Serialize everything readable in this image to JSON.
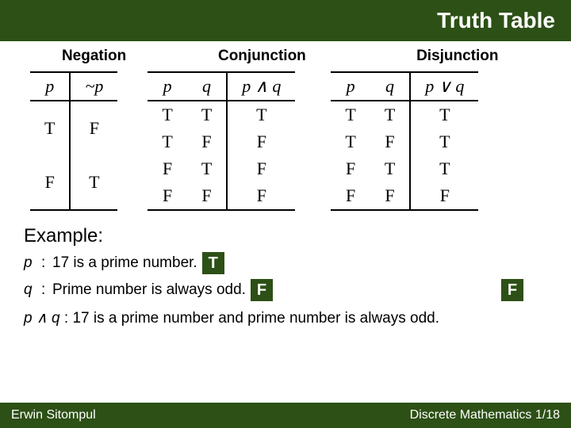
{
  "colors": {
    "brand": "#2d5016",
    "brand_text": "#ffffff",
    "page_bg": "#ffffff",
    "rule": "#000000"
  },
  "header": {
    "title": "Truth Table"
  },
  "sections": {
    "negation": {
      "label": "Negation",
      "columns": [
        "p",
        "~p"
      ],
      "rows": [
        [
          "T",
          "F"
        ],
        [
          "F",
          "T"
        ]
      ]
    },
    "conjunction": {
      "label": "Conjunction",
      "columns": [
        "p",
        "q",
        "p ∧ q"
      ],
      "rows": [
        [
          "T",
          "T",
          "T"
        ],
        [
          "T",
          "F",
          "F"
        ],
        [
          "F",
          "T",
          "F"
        ],
        [
          "F",
          "F",
          "F"
        ]
      ]
    },
    "disjunction": {
      "label": "Disjunction",
      "columns": [
        "p",
        "q",
        "p ∨ q"
      ],
      "rows": [
        [
          "T",
          "T",
          "T"
        ],
        [
          "T",
          "F",
          "T"
        ],
        [
          "F",
          "T",
          "T"
        ],
        [
          "F",
          "F",
          "F"
        ]
      ]
    }
  },
  "example": {
    "heading": "Example:",
    "p_sym": "p",
    "p_text": "17 is a prime number.",
    "p_val": "T",
    "q_sym": "q",
    "q_text": "Prime number is always odd.",
    "q_val": "F",
    "result_val": "F",
    "colon": ":"
  },
  "conclusion": {
    "lhs": "p ∧ q",
    "sep": ":",
    "text": "17 is a prime number and prime number is always odd."
  },
  "footer": {
    "author": "Erwin Sitompul",
    "course": "Discrete Mathematics",
    "page": "1/18"
  }
}
